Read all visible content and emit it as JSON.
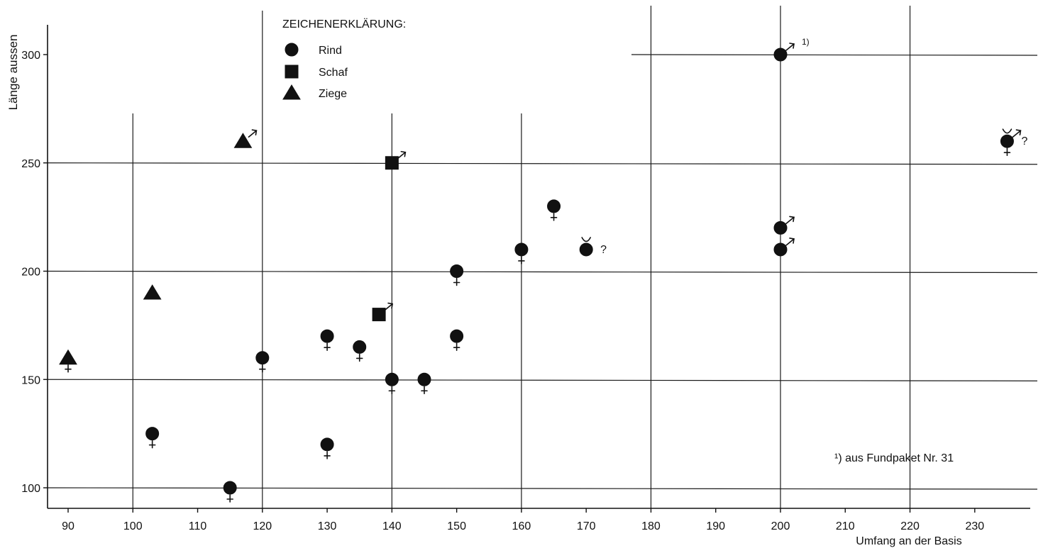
{
  "chart_data": {
    "type": "scatter",
    "title": "",
    "xlabel": "Umfang an der Basis",
    "ylabel": "Länge aussen",
    "xlim": [
      87,
      238
    ],
    "ylim": [
      92,
      313
    ],
    "x_ticks": [
      90,
      100,
      110,
      120,
      130,
      140,
      150,
      160,
      170,
      180,
      190,
      200,
      210,
      220,
      230
    ],
    "y_ticks": [
      100,
      150,
      200,
      250,
      300
    ],
    "grid": {
      "vertical_lines_at": [
        100,
        120,
        140,
        160,
        180,
        200,
        220
      ],
      "horizontal_lines_at": [
        100,
        150,
        200,
        250,
        300
      ]
    },
    "legend": {
      "title": "ZEICHENERKLÄRUNG:",
      "placement": "top-left",
      "entries": [
        {
          "name": "Rind",
          "shape": "circle"
        },
        {
          "name": "Schaf",
          "shape": "square"
        },
        {
          "name": "Ziege",
          "shape": "triangle"
        }
      ]
    },
    "footnote": "¹) aus Fundpaket Nr. 31",
    "series": [
      {
        "name": "Rind",
        "shape": "circle",
        "points": [
          {
            "x": 103,
            "y": 125,
            "sex": "female"
          },
          {
            "x": 115,
            "y": 100,
            "sex": "female"
          },
          {
            "x": 120,
            "y": 160,
            "sex": "female"
          },
          {
            "x": 130,
            "y": 170,
            "sex": "female"
          },
          {
            "x": 130,
            "y": 120,
            "sex": "female"
          },
          {
            "x": 135,
            "y": 165,
            "sex": "female"
          },
          {
            "x": 140,
            "y": 150,
            "sex": "female"
          },
          {
            "x": 145,
            "y": 150,
            "sex": "female"
          },
          {
            "x": 150,
            "y": 200,
            "sex": "female"
          },
          {
            "x": 150,
            "y": 170,
            "sex": "female"
          },
          {
            "x": 160,
            "y": 210,
            "sex": "female"
          },
          {
            "x": 165,
            "y": 230,
            "sex": "female"
          },
          {
            "x": 170,
            "y": 210,
            "sex": "castrate",
            "note": "?"
          },
          {
            "x": 200,
            "y": 300,
            "sex": "male",
            "note": "1)"
          },
          {
            "x": 200,
            "y": 220,
            "sex": "male"
          },
          {
            "x": 200,
            "y": 210,
            "sex": "male"
          },
          {
            "x": 235,
            "y": 260,
            "sex": "castrate-male",
            "note": "?"
          }
        ]
      },
      {
        "name": "Schaf",
        "shape": "square",
        "points": [
          {
            "x": 140,
            "y": 250,
            "sex": "male"
          },
          {
            "x": 138,
            "y": 180,
            "sex": "male"
          }
        ]
      },
      {
        "name": "Ziege",
        "shape": "triangle",
        "points": [
          {
            "x": 90,
            "y": 160,
            "sex": "female"
          },
          {
            "x": 103,
            "y": 190,
            "sex": ""
          },
          {
            "x": 117,
            "y": 260,
            "sex": "male"
          }
        ]
      }
    ]
  }
}
